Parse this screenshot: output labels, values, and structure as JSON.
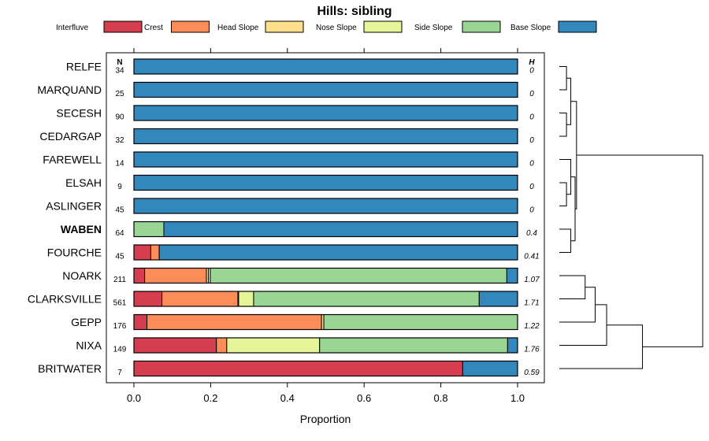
{
  "chart_data": {
    "type": "bar",
    "stacked": true,
    "orientation": "horizontal",
    "title": "Hills: sibling",
    "xlabel": "Proportion",
    "xlim": [
      0,
      1
    ],
    "xticks": [
      0,
      0.2,
      0.4,
      0.6,
      0.8,
      1
    ],
    "xtick_labels": [
      "0.0",
      "0.2",
      "0.4",
      "0.6",
      "0.8",
      "1.0"
    ],
    "n_header": "N",
    "h_header": "H",
    "highlight": "WABEN",
    "legend": [
      {
        "name": "Interfluve",
        "color": "#d53e4f"
      },
      {
        "name": "Crest",
        "color": "#fc8d59"
      },
      {
        "name": "Head Slope",
        "color": "#fee08b"
      },
      {
        "name": "Nose Slope",
        "color": "#e6f598"
      },
      {
        "name": "Side Slope",
        "color": "#99d594"
      },
      {
        "name": "Base Slope",
        "color": "#3288bd"
      }
    ],
    "categories": [
      "RELFE",
      "MARQUAND",
      "SECESH",
      "CEDARGAP",
      "FAREWELL",
      "ELSAH",
      "ASLINGER",
      "WABEN",
      "FOURCHE",
      "NOARK",
      "CLARKSVILLE",
      "GEPP",
      "NIXA",
      "BRITWATER"
    ],
    "n": [
      "34",
      "25",
      "90",
      "32",
      "14",
      "9",
      "45",
      "64",
      "45",
      "211",
      "561",
      "176",
      "149",
      "7"
    ],
    "h": [
      "0",
      "0",
      "0",
      "0",
      "0",
      "0",
      "0",
      "0.4",
      "0.41",
      "1.07",
      "1.71",
      "1.22",
      "1.76",
      "0.59"
    ],
    "series": [
      {
        "name": "Interfluve",
        "values": [
          0,
          0,
          0,
          0,
          0,
          0,
          0,
          0,
          0.044,
          0.028,
          0.073,
          0.034,
          0.215,
          0.857
        ]
      },
      {
        "name": "Crest",
        "values": [
          0,
          0,
          0,
          0,
          0,
          0,
          0,
          0,
          0.022,
          0.161,
          0.198,
          0.455,
          0.027,
          0
        ]
      },
      {
        "name": "Head Slope",
        "values": [
          0,
          0,
          0,
          0,
          0,
          0,
          0,
          0,
          0,
          0.005,
          0.002,
          0.006,
          0,
          0
        ]
      },
      {
        "name": "Nose Slope",
        "values": [
          0,
          0,
          0,
          0,
          0,
          0,
          0,
          0,
          0,
          0.005,
          0.039,
          0,
          0.242,
          0
        ]
      },
      {
        "name": "Side Slope",
        "values": [
          0,
          0,
          0,
          0,
          0,
          0,
          0,
          0.078,
          0,
          0.773,
          0.588,
          0.505,
          0.49,
          0
        ]
      },
      {
        "name": "Base Slope",
        "values": [
          1,
          1,
          1,
          1,
          1,
          1,
          1,
          0.922,
          0.934,
          0.028,
          0.1,
          0,
          0.026,
          0.143
        ]
      }
    ],
    "dendrogram": {
      "merges": [
        [
          -1,
          -2,
          0.05
        ],
        [
          -3,
          -4,
          0.05
        ],
        [
          1,
          2,
          0.08
        ],
        [
          -6,
          -7,
          0.05
        ],
        [
          -5,
          4,
          0.08
        ],
        [
          -8,
          -9,
          0.08
        ],
        [
          5,
          6,
          0.11
        ],
        [
          3,
          7,
          0.12
        ],
        [
          -10,
          -11,
          0.18
        ],
        [
          9,
          -12,
          0.25
        ],
        [
          10,
          -13,
          0.33
        ],
        [
          11,
          -14,
          0.58
        ],
        [
          8,
          12,
          1.0
        ]
      ]
    }
  }
}
